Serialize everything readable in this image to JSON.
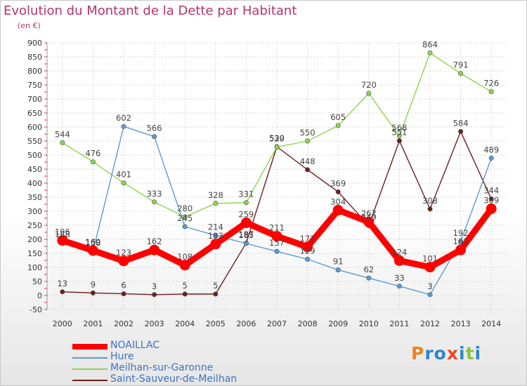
{
  "title": "Evolution du Montant de la Dette par Habitant",
  "unit": "(en €)",
  "logo": "Proxiti",
  "chart_data": {
    "type": "line",
    "x": [
      2000,
      2001,
      2002,
      2003,
      2004,
      2005,
      2006,
      2007,
      2008,
      2009,
      2010,
      2011,
      2012,
      2013,
      2014
    ],
    "ylim": [
      -50,
      900
    ],
    "yticks": [
      -50,
      0,
      50,
      100,
      150,
      200,
      250,
      300,
      350,
      400,
      450,
      500,
      550,
      600,
      650,
      700,
      750,
      800,
      850,
      900
    ],
    "grid": true,
    "legend_position": "bottom-left",
    "series": [
      {
        "name": "NOAILLAC",
        "color": "#ff0000",
        "values": [
          196,
          160,
          123,
          162,
          108,
          183,
          259,
          211,
          173,
          304,
          262,
          124,
          101,
          162,
          309
        ]
      },
      {
        "name": "Hure",
        "color": "#5b9bd5",
        "values": [
          188,
          158,
          602,
          566,
          245,
          214,
          185,
          157,
          129,
          91,
          62,
          33,
          3,
          192,
          489
        ]
      },
      {
        "name": "Meilhan-sur-Garonne",
        "color": "#8fd352",
        "values": [
          544,
          476,
          401,
          333,
          280,
          328,
          331,
          529,
          550,
          605,
          720,
          568,
          864,
          791,
          726
        ]
      },
      {
        "name": "Saint-Sauveur-de-Meilhan",
        "color": "#6b1f1f",
        "values": [
          13,
          9,
          6,
          3,
          5,
          5,
          187,
          530,
          448,
          369,
          249,
          551,
          308,
          584,
          344
        ]
      }
    ]
  }
}
